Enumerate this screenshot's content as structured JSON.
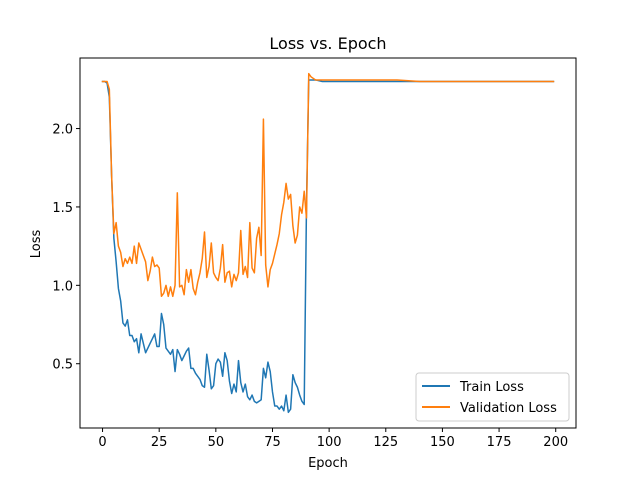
{
  "chart_data": {
    "type": "line",
    "title": "Loss vs. Epoch",
    "xlabel": "Epoch",
    "ylabel": "Loss",
    "xlim": [
      -9.95,
      208.95
    ],
    "ylim": [
      0.09,
      2.45
    ],
    "x_ticks": [
      0,
      25,
      50,
      75,
      100,
      125,
      150,
      175,
      200
    ],
    "y_ticks": [
      0.5,
      1.0,
      1.5,
      2.0
    ],
    "x_tick_labels": [
      "0",
      "25",
      "50",
      "75",
      "100",
      "125",
      "150",
      "175",
      "200"
    ],
    "y_tick_labels": [
      "0.5",
      "1.0",
      "1.5",
      "2.0"
    ],
    "grid": false,
    "legend_position": "lower-right",
    "series": [
      {
        "name": "Train Loss",
        "color": "#1f77b4",
        "points": [
          [
            0,
            2.3
          ],
          [
            1,
            2.3
          ],
          [
            2,
            2.29
          ],
          [
            3,
            2.2
          ],
          [
            4,
            1.7
          ],
          [
            5,
            1.3
          ],
          [
            6,
            1.15
          ],
          [
            7,
            0.98
          ],
          [
            8,
            0.9
          ],
          [
            9,
            0.76
          ],
          [
            10,
            0.74
          ],
          [
            11,
            0.78
          ],
          [
            12,
            0.68
          ],
          [
            13,
            0.68
          ],
          [
            14,
            0.64
          ],
          [
            15,
            0.66
          ],
          [
            16,
            0.57
          ],
          [
            17,
            0.69
          ],
          [
            18,
            0.63
          ],
          [
            19,
            0.57
          ],
          [
            20,
            0.6
          ],
          [
            21,
            0.63
          ],
          [
            22,
            0.66
          ],
          [
            23,
            0.69
          ],
          [
            24,
            0.61
          ],
          [
            25,
            0.61
          ],
          [
            26,
            0.82
          ],
          [
            27,
            0.75
          ],
          [
            28,
            0.6
          ],
          [
            29,
            0.58
          ],
          [
            30,
            0.56
          ],
          [
            31,
            0.59
          ],
          [
            32,
            0.45
          ],
          [
            33,
            0.59
          ],
          [
            34,
            0.56
          ],
          [
            35,
            0.52
          ],
          [
            36,
            0.55
          ],
          [
            37,
            0.58
          ],
          [
            38,
            0.6
          ],
          [
            39,
            0.47
          ],
          [
            40,
            0.47
          ],
          [
            41,
            0.44
          ],
          [
            42,
            0.42
          ],
          [
            43,
            0.4
          ],
          [
            44,
            0.36
          ],
          [
            45,
            0.35
          ],
          [
            46,
            0.56
          ],
          [
            47,
            0.46
          ],
          [
            48,
            0.34
          ],
          [
            49,
            0.36
          ],
          [
            50,
            0.5
          ],
          [
            51,
            0.53
          ],
          [
            52,
            0.51
          ],
          [
            53,
            0.42
          ],
          [
            54,
            0.57
          ],
          [
            55,
            0.52
          ],
          [
            56,
            0.39
          ],
          [
            57,
            0.31
          ],
          [
            58,
            0.37
          ],
          [
            59,
            0.32
          ],
          [
            60,
            0.52
          ],
          [
            61,
            0.38
          ],
          [
            62,
            0.32
          ],
          [
            63,
            0.37
          ],
          [
            64,
            0.29
          ],
          [
            65,
            0.27
          ],
          [
            66,
            0.3
          ],
          [
            67,
            0.26
          ],
          [
            68,
            0.25
          ],
          [
            69,
            0.26
          ],
          [
            70,
            0.27
          ],
          [
            71,
            0.47
          ],
          [
            72,
            0.41
          ],
          [
            73,
            0.51
          ],
          [
            74,
            0.45
          ],
          [
            75,
            0.32
          ],
          [
            76,
            0.23
          ],
          [
            77,
            0.23
          ],
          [
            78,
            0.21
          ],
          [
            79,
            0.23
          ],
          [
            80,
            0.2
          ],
          [
            81,
            0.3
          ],
          [
            82,
            0.19
          ],
          [
            83,
            0.21
          ],
          [
            84,
            0.43
          ],
          [
            85,
            0.38
          ],
          [
            86,
            0.35
          ],
          [
            87,
            0.3
          ],
          [
            88,
            0.26
          ],
          [
            89,
            0.24
          ],
          [
            90,
            1.5
          ],
          [
            91,
            2.31
          ],
          [
            92,
            2.31
          ],
          [
            94,
            2.31
          ],
          [
            97,
            2.3
          ],
          [
            100,
            2.3
          ],
          [
            110,
            2.3
          ],
          [
            120,
            2.3
          ],
          [
            130,
            2.3
          ],
          [
            140,
            2.3
          ],
          [
            150,
            2.3
          ],
          [
            160,
            2.3
          ],
          [
            170,
            2.3
          ],
          [
            180,
            2.3
          ],
          [
            190,
            2.3
          ],
          [
            199,
            2.3
          ]
        ]
      },
      {
        "name": "Validation Loss",
        "color": "#ff7f0e",
        "points": [
          [
            0,
            2.3
          ],
          [
            1,
            2.3
          ],
          [
            2,
            2.3
          ],
          [
            3,
            2.25
          ],
          [
            4,
            1.7
          ],
          [
            5,
            1.33
          ],
          [
            6,
            1.4
          ],
          [
            7,
            1.25
          ],
          [
            8,
            1.21
          ],
          [
            9,
            1.12
          ],
          [
            10,
            1.17
          ],
          [
            11,
            1.14
          ],
          [
            12,
            1.18
          ],
          [
            13,
            1.14
          ],
          [
            14,
            1.25
          ],
          [
            15,
            1.14
          ],
          [
            16,
            1.27
          ],
          [
            17,
            1.23
          ],
          [
            18,
            1.19
          ],
          [
            19,
            1.15
          ],
          [
            20,
            1.03
          ],
          [
            21,
            1.09
          ],
          [
            22,
            1.18
          ],
          [
            23,
            1.12
          ],
          [
            24,
            1.13
          ],
          [
            25,
            1.11
          ],
          [
            26,
            0.93
          ],
          [
            27,
            0.95
          ],
          [
            28,
            1.0
          ],
          [
            29,
            0.93
          ],
          [
            30,
            0.99
          ],
          [
            31,
            0.93
          ],
          [
            32,
            1.0
          ],
          [
            33,
            1.59
          ],
          [
            34,
            0.99
          ],
          [
            35,
            1.0
          ],
          [
            36,
            0.94
          ],
          [
            37,
            1.1
          ],
          [
            38,
            1.02
          ],
          [
            39,
            1.1
          ],
          [
            40,
            0.98
          ],
          [
            41,
            0.94
          ],
          [
            42,
            1.02
          ],
          [
            43,
            1.08
          ],
          [
            44,
            1.17
          ],
          [
            45,
            1.34
          ],
          [
            46,
            1.05
          ],
          [
            47,
            1.12
          ],
          [
            48,
            1.27
          ],
          [
            49,
            1.08
          ],
          [
            50,
            1.05
          ],
          [
            51,
            1.03
          ],
          [
            52,
            1.11
          ],
          [
            53,
            1.26
          ],
          [
            54,
            1.02
          ],
          [
            55,
            1.08
          ],
          [
            56,
            1.09
          ],
          [
            57,
            0.99
          ],
          [
            58,
            1.07
          ],
          [
            59,
            1.03
          ],
          [
            60,
            1.08
          ],
          [
            61,
            1.35
          ],
          [
            62,
            1.07
          ],
          [
            63,
            1.12
          ],
          [
            64,
            1.05
          ],
          [
            65,
            1.4
          ],
          [
            66,
            1.11
          ],
          [
            67,
            1.08
          ],
          [
            68,
            1.3
          ],
          [
            69,
            1.37
          ],
          [
            70,
            1.19
          ],
          [
            71,
            2.06
          ],
          [
            72,
            1.13
          ],
          [
            73,
            0.99
          ],
          [
            74,
            1.1
          ],
          [
            75,
            1.14
          ],
          [
            76,
            1.2
          ],
          [
            77,
            1.26
          ],
          [
            78,
            1.33
          ],
          [
            79,
            1.45
          ],
          [
            80,
            1.53
          ],
          [
            81,
            1.65
          ],
          [
            82,
            1.55
          ],
          [
            83,
            1.58
          ],
          [
            84,
            1.38
          ],
          [
            85,
            1.27
          ],
          [
            86,
            1.32
          ],
          [
            87,
            1.5
          ],
          [
            88,
            1.46
          ],
          [
            89,
            1.6
          ],
          [
            90,
            1.43
          ],
          [
            91,
            2.35
          ],
          [
            92,
            2.33
          ],
          [
            94,
            2.31
          ],
          [
            97,
            2.31
          ],
          [
            100,
            2.31
          ],
          [
            110,
            2.31
          ],
          [
            120,
            2.31
          ],
          [
            130,
            2.31
          ],
          [
            140,
            2.3
          ],
          [
            150,
            2.3
          ],
          [
            160,
            2.3
          ],
          [
            170,
            2.3
          ],
          [
            180,
            2.3
          ],
          [
            190,
            2.3
          ],
          [
            199,
            2.3
          ]
        ]
      }
    ]
  }
}
